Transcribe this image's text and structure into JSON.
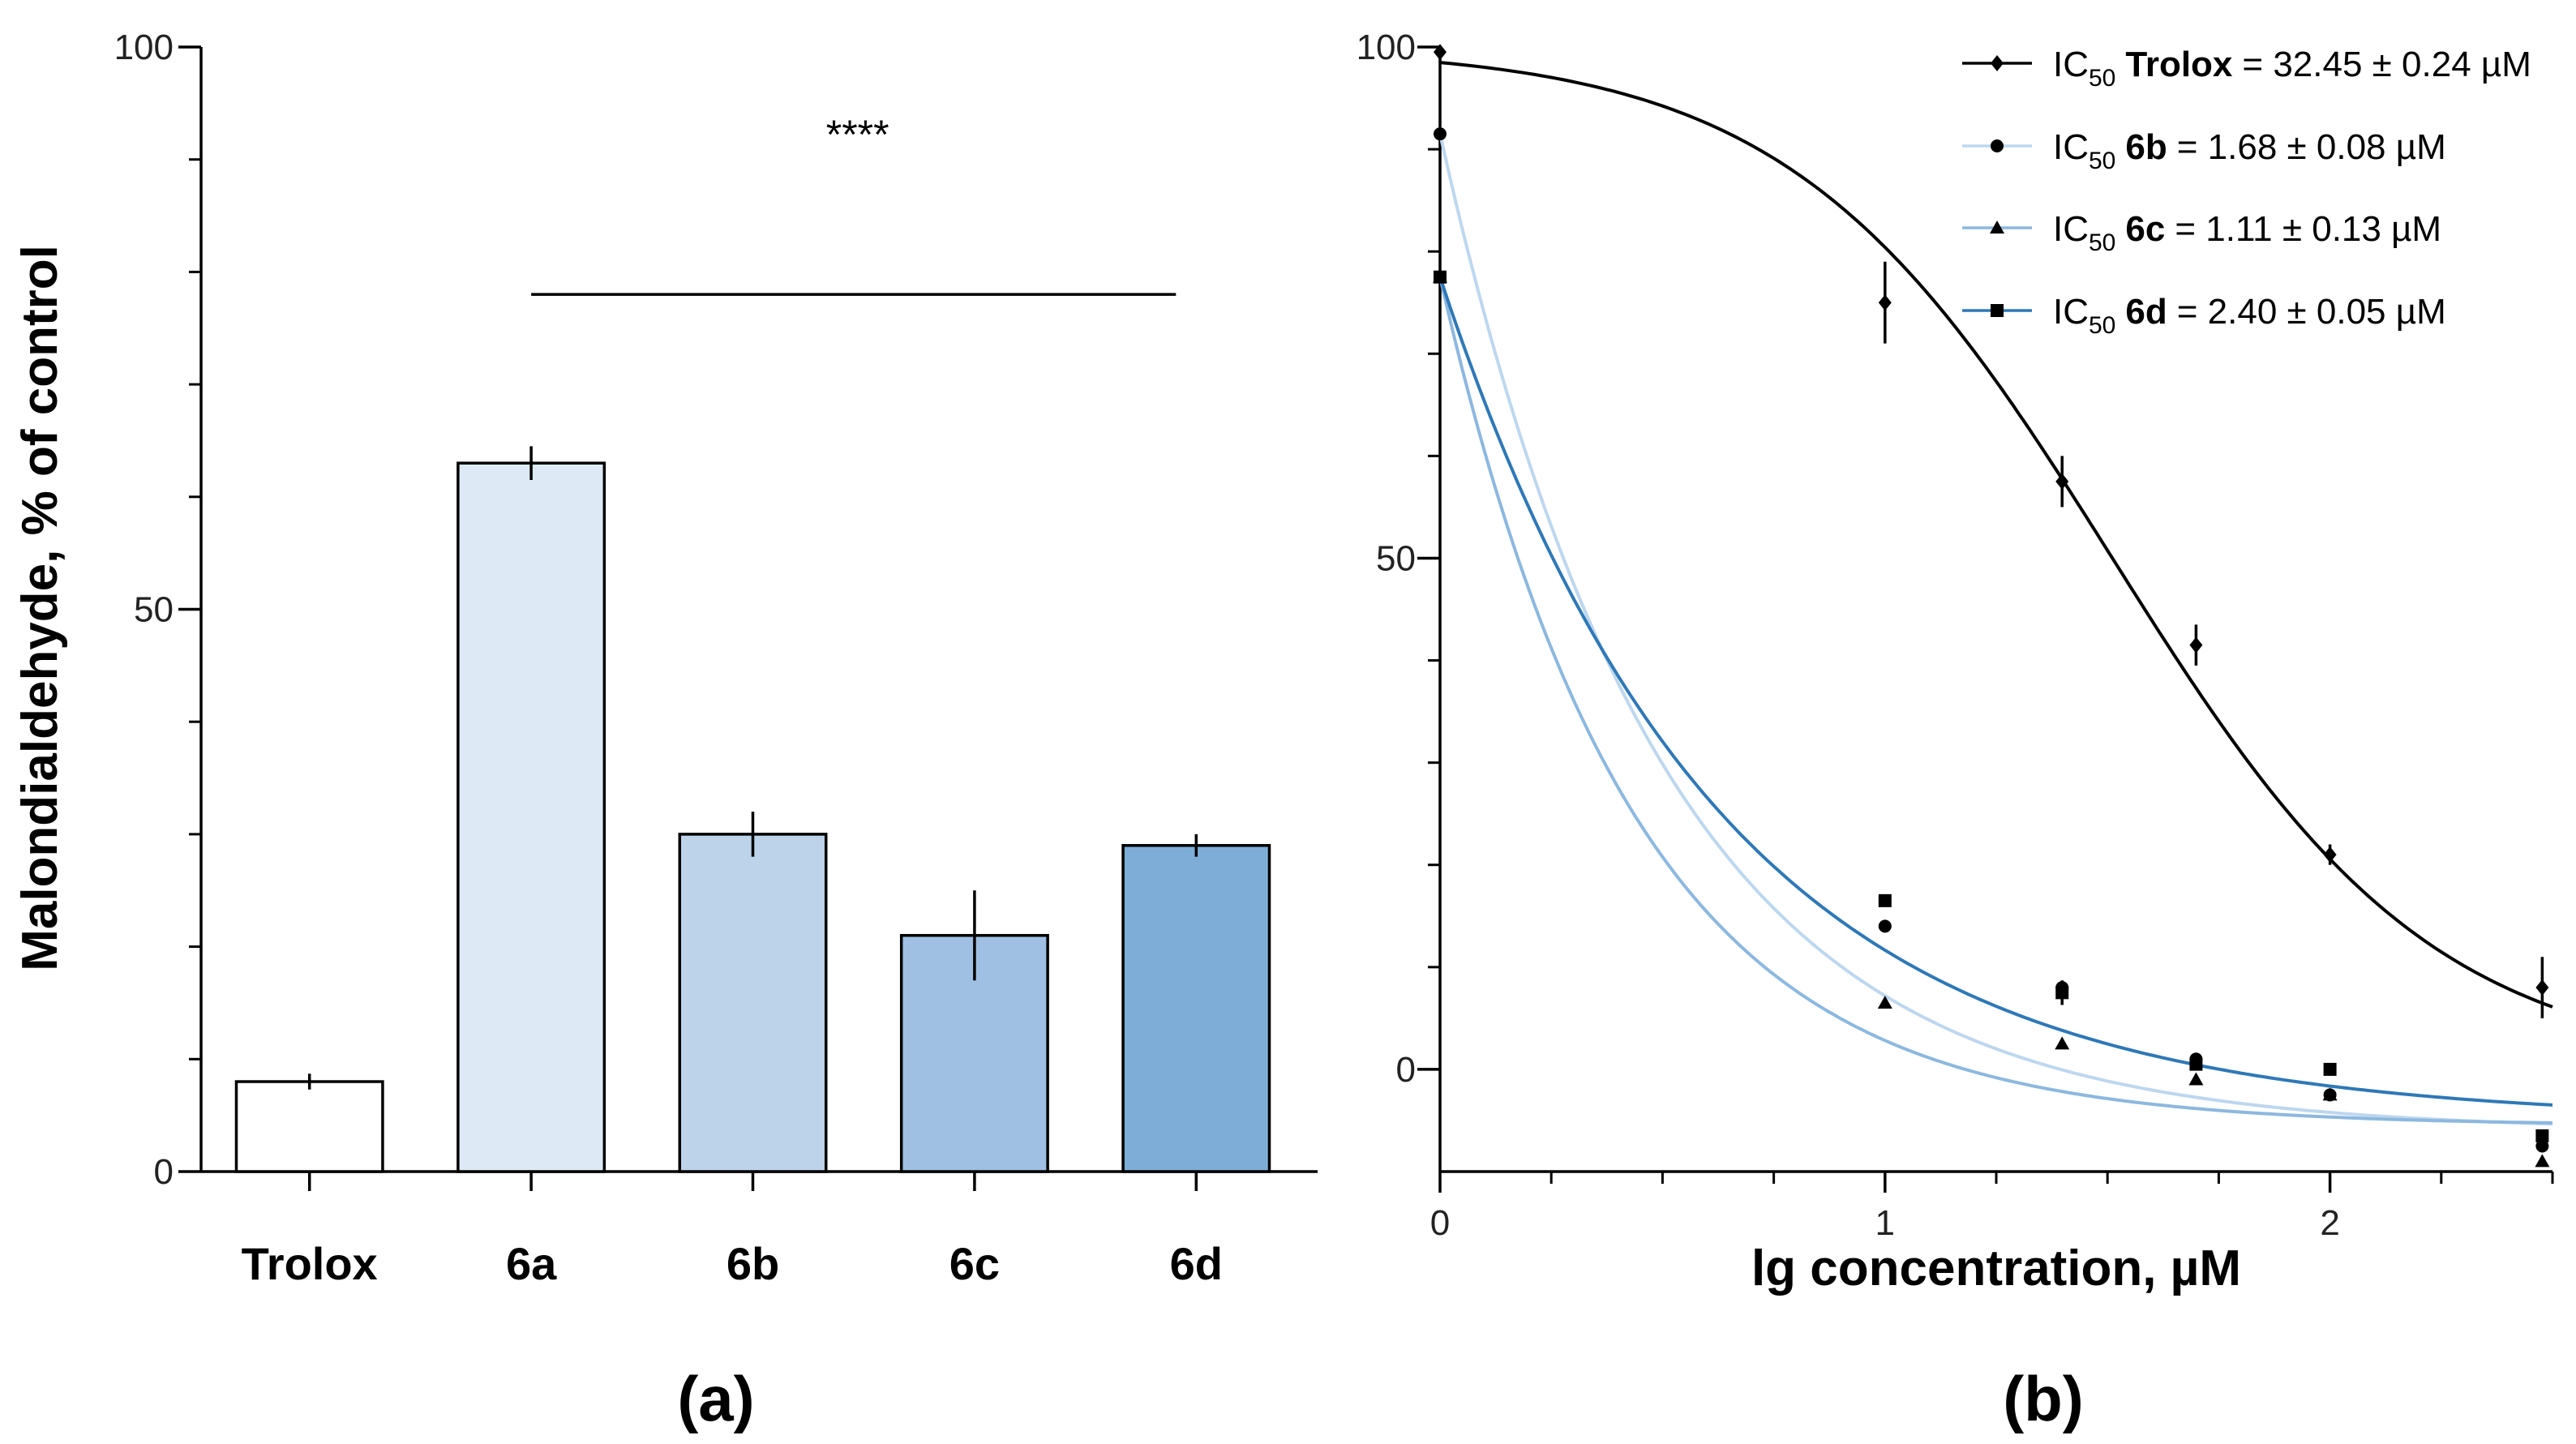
{
  "chart_data": [
    {
      "panel": "(a)",
      "type": "bar",
      "ylabel": "Malondialdehyde, % of control",
      "xlabel": "",
      "ylim": [
        0,
        100
      ],
      "yticks": [
        "0",
        "50",
        "100"
      ],
      "categories": [
        "Trolox",
        "6a",
        "6b",
        "6c",
        "6d"
      ],
      "values": [
        8,
        63,
        30,
        21,
        29
      ],
      "errors": [
        0.7,
        1.5,
        2,
        4,
        1
      ],
      "colors": [
        "#ffffff",
        "#ddeaf5",
        "#bdd3ea",
        "#9fc0e2",
        "#7eadd7"
      ],
      "significance": {
        "label": "****",
        "from": "6a",
        "to": "6d",
        "y": 78
      }
    },
    {
      "panel": "(b)",
      "type": "scatter",
      "xlabel": "lg concentration, µM",
      "ylabel": "",
      "xlim": [
        0,
        2.5
      ],
      "ylim": [
        -10,
        100
      ],
      "xticks": [
        "0",
        "1",
        "2"
      ],
      "yticks": [
        "0",
        "50",
        "100"
      ],
      "series": [
        {
          "name": "Trolox",
          "ic50_prefix": "IC",
          "ic50_sub": "50",
          "ic50_text": "= 32.45 ± 0.24 µM",
          "marker": "diamond",
          "color": "#000000",
          "x": [
            0,
            1,
            1.398,
            1.699,
            2,
            2.477
          ],
          "y": [
            99.5,
            75,
            57.5,
            41.5,
            21,
            8
          ],
          "err": [
            0,
            4,
            2.5,
            2,
            1,
            3
          ],
          "fit": {
            "top": 100,
            "bottom": 0,
            "log_ic50": 1.511,
            "hill": 1.2
          }
        },
        {
          "name": "6b",
          "ic50_prefix": "IC",
          "ic50_sub": "50",
          "ic50_text": "= 1.68 ± 0.08 µM",
          "marker": "circle",
          "color": "#bdd7ee",
          "x": [
            0,
            1,
            1.398,
            1.699,
            2,
            2.477
          ],
          "y": [
            91.5,
            14,
            8,
            1,
            -2.5,
            -7.5
          ],
          "err": [
            0,
            0,
            0,
            0,
            0,
            0
          ],
          "fit": {
            "a": 91.5,
            "b": -6,
            "k": 2.0
          }
        },
        {
          "name": "6c",
          "ic50_prefix": "IC",
          "ic50_sub": "50",
          "ic50_text": "= 1.11 ± 0.13 µM",
          "marker": "triangle",
          "color": "#8db8df",
          "x": [
            0,
            1,
            1.398,
            1.699,
            2,
            2.477
          ],
          "y": [
            77.5,
            6.5,
            2.5,
            -1,
            -2.5,
            -9
          ],
          "err": [
            0,
            0,
            0,
            0,
            0,
            0
          ],
          "fit": {
            "a": 77.5,
            "b": -5.5,
            "k": 2.3
          }
        },
        {
          "name": "6d",
          "ic50_prefix": "IC",
          "ic50_sub": "50",
          "ic50_text": "= 2.40 ± 0.05 µM",
          "marker": "square",
          "color": "#2f78b7",
          "x": [
            0,
            1,
            1.398,
            1.699,
            2,
            2.477
          ],
          "y": [
            77.5,
            16.5,
            7.5,
            0.5,
            0,
            -6.5
          ],
          "err": [
            0,
            0,
            1.2,
            0,
            0,
            0
          ],
          "fit": {
            "a": 77.5,
            "b": -5,
            "k": 1.6
          }
        }
      ],
      "legend_position": "top-right"
    }
  ]
}
